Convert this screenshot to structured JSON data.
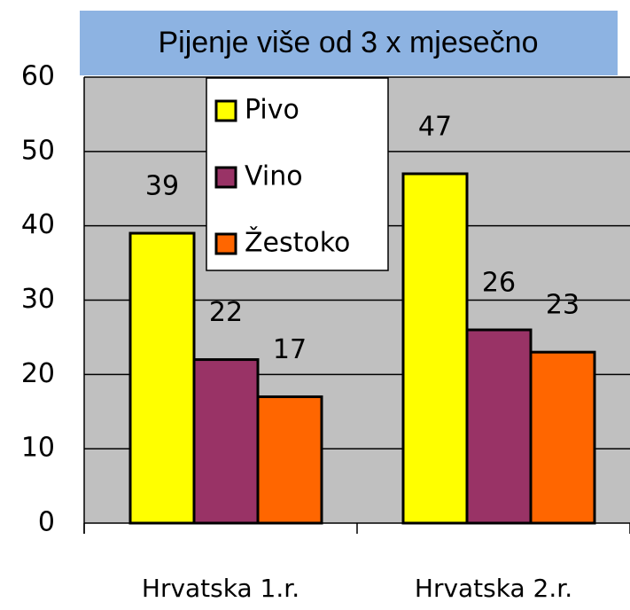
{
  "chart_data": {
    "type": "bar",
    "title": "Pijenje više od 3 x mjesečno",
    "categories": [
      "Hrvatska 1.r.",
      "Hrvatska 2.r."
    ],
    "series": [
      {
        "name": "Pivo",
        "color": "#ffff00",
        "values": [
          39,
          47
        ]
      },
      {
        "name": "Vino",
        "color": "#993366",
        "values": [
          22,
          26
        ]
      },
      {
        "name": "Žestoko",
        "color": "#ff6600",
        "values": [
          17,
          23
        ]
      }
    ],
    "ylim": [
      0,
      60
    ],
    "yticks": [
      0,
      10,
      20,
      30,
      40,
      50,
      60
    ],
    "grid": true
  }
}
